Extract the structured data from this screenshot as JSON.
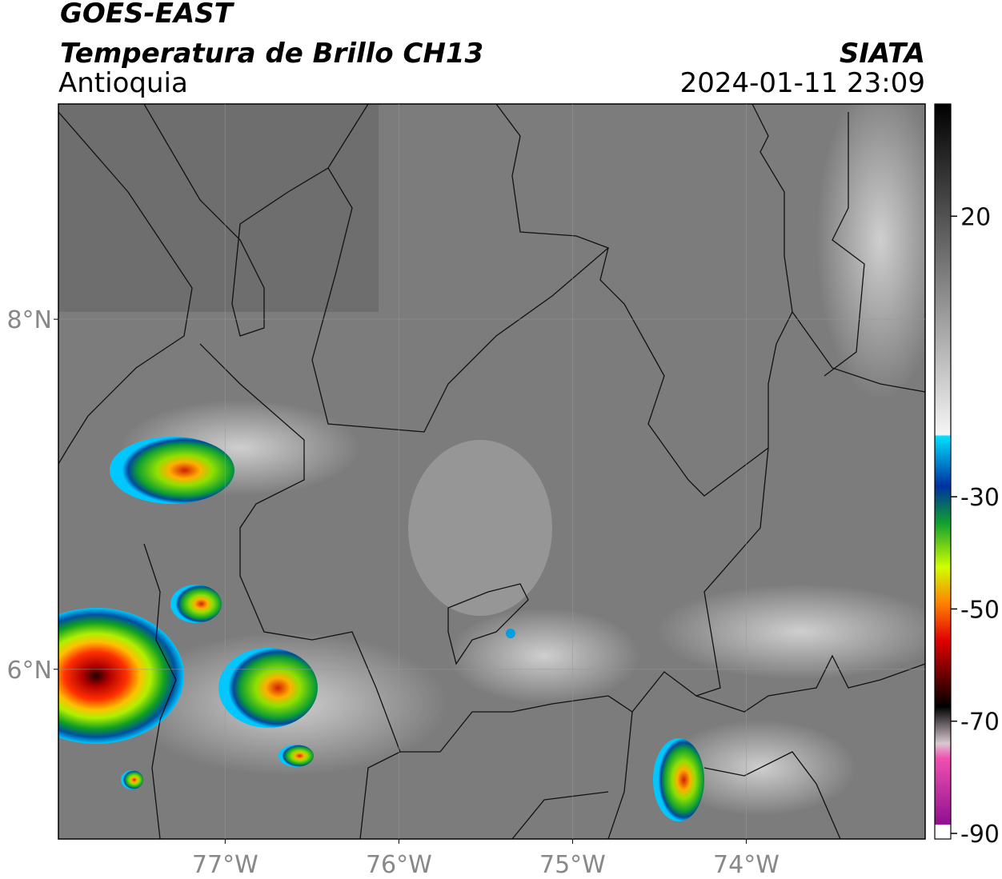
{
  "header": {
    "title": "GOES-EAST",
    "subtitle": "Temperatura de Brillo CH13",
    "region": "Antioquia",
    "source": "SIATA",
    "datetime": "2024-01-11 23:09"
  },
  "map": {
    "lon_lim": [
      -77.96,
      -72.97
    ],
    "lat_lim": [
      5.03,
      9.23
    ],
    "lon_ticks": [
      {
        "value": -77,
        "label": "77°W"
      },
      {
        "value": -76,
        "label": "76°W"
      },
      {
        "value": -75,
        "label": "75°W"
      },
      {
        "value": -74,
        "label": "74°W"
      }
    ],
    "lat_ticks": [
      {
        "value": 8,
        "label": "8°N"
      },
      {
        "value": 6,
        "label": "6°N"
      }
    ]
  },
  "colorbar": {
    "lim": [
      -91,
      40
    ],
    "ticks": [
      20,
      -30,
      -50,
      -70,
      -90
    ]
  }
}
